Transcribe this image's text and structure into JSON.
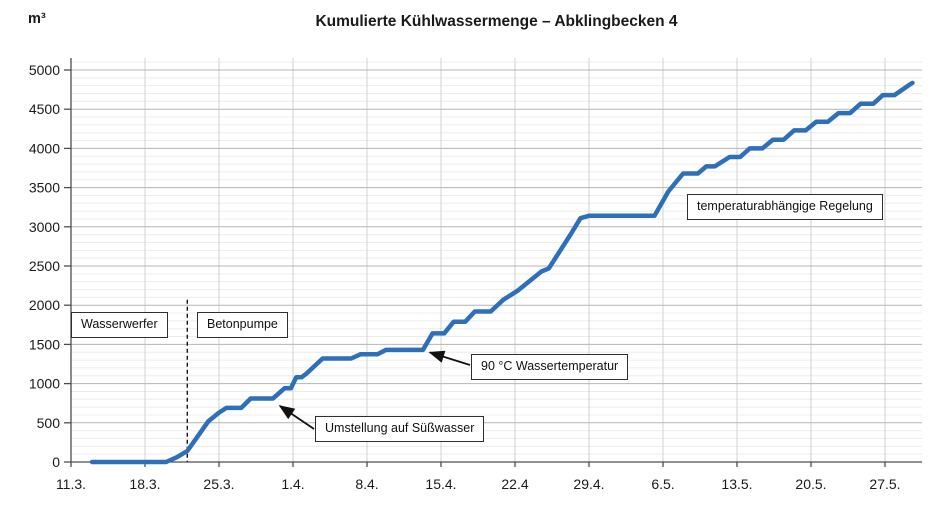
{
  "chart": {
    "title": "Kumulierte Kühlwassermenge – Abklingbecken 4",
    "unit_label": "m³"
  },
  "chart_data": {
    "type": "line",
    "title": "Kumulierte Kühlwassermenge – Abklingbecken 4",
    "ylabel": "m³",
    "ylim": [
      0,
      5150
    ],
    "y_major_ticks": [
      0,
      500,
      1000,
      1500,
      2000,
      2500,
      3000,
      3500,
      4000,
      4500,
      5000
    ],
    "y_minor_step": 100,
    "x_tick_labels": [
      "11.3.",
      "18.3.",
      "25.3.",
      "1.4.",
      "8.4.",
      "15.4.",
      "22.4",
      "29.4.",
      "6.5.",
      "13.5.",
      "20.5.",
      "27.5."
    ],
    "x_tick_days": [
      0,
      7,
      14,
      21,
      28,
      35,
      42,
      49,
      56,
      63,
      70,
      77
    ],
    "xlim_days": [
      0,
      80.5
    ],
    "grid": "on",
    "legend": "none",
    "series": [
      {
        "color": "#2e6fba",
        "points_day_value": [
          [
            2,
            0
          ],
          [
            9,
            0
          ],
          [
            10,
            60
          ],
          [
            11,
            140
          ],
          [
            12,
            330
          ],
          [
            13,
            520
          ],
          [
            14,
            630
          ],
          [
            14.7,
            690
          ],
          [
            16.1,
            690
          ],
          [
            17,
            810
          ],
          [
            19.1,
            810
          ],
          [
            20.2,
            940
          ],
          [
            20.8,
            940
          ],
          [
            21.3,
            1080
          ],
          [
            21.8,
            1080
          ],
          [
            22.3,
            1130
          ],
          [
            23.8,
            1320
          ],
          [
            26.5,
            1320
          ],
          [
            27.4,
            1375
          ],
          [
            29,
            1375
          ],
          [
            29.8,
            1430
          ],
          [
            33.3,
            1430
          ],
          [
            34.2,
            1640
          ],
          [
            35.3,
            1640
          ],
          [
            36.2,
            1790
          ],
          [
            37.3,
            1790
          ],
          [
            38.2,
            1920
          ],
          [
            39.7,
            1920
          ],
          [
            40.9,
            2070
          ],
          [
            42.3,
            2190
          ],
          [
            44.5,
            2430
          ],
          [
            45.2,
            2470
          ],
          [
            47.2,
            2890
          ],
          [
            48.2,
            3110
          ],
          [
            49,
            3140
          ],
          [
            55.2,
            3140
          ],
          [
            56.5,
            3450
          ],
          [
            57.9,
            3680
          ],
          [
            59.3,
            3680
          ],
          [
            60.1,
            3770
          ],
          [
            60.9,
            3770
          ],
          [
            62.3,
            3890
          ],
          [
            63.3,
            3890
          ],
          [
            64.2,
            4000
          ],
          [
            65.4,
            4000
          ],
          [
            66.4,
            4110
          ],
          [
            67.4,
            4110
          ],
          [
            68.4,
            4230
          ],
          [
            69.5,
            4230
          ],
          [
            70.5,
            4340
          ],
          [
            71.6,
            4340
          ],
          [
            72.6,
            4450
          ],
          [
            73.7,
            4450
          ],
          [
            74.7,
            4570
          ],
          [
            75.9,
            4570
          ],
          [
            76.8,
            4680
          ],
          [
            77.9,
            4680
          ],
          [
            79.3,
            4810
          ],
          [
            79.6,
            4835
          ]
        ]
      }
    ],
    "phase_divider": {
      "date": "22.3.",
      "day": 11,
      "top_value": 2070,
      "style": "dashed"
    },
    "annotations": [
      {
        "text": "Wasserwerfer",
        "arrow": false
      },
      {
        "text": "Betonpumpe",
        "arrow": false
      },
      {
        "text": "Umstellung auf Süßwasser",
        "arrow": true,
        "points_to_date": "30.3."
      },
      {
        "text": "90 °C Wassertemperatur",
        "arrow": true,
        "points_to_date": "13.4."
      },
      {
        "text": "temperaturabhängige Regelung",
        "arrow": false
      }
    ],
    "colors": {
      "series_line": "#2e6fba",
      "grid_minor": "#ececec",
      "grid_major": "#b4b4b4",
      "grid_vertical": "#d2d2d2",
      "axis": "#4d4d4d",
      "annotation_border": "#2e2e2e",
      "text": "#1a1a1a"
    }
  }
}
